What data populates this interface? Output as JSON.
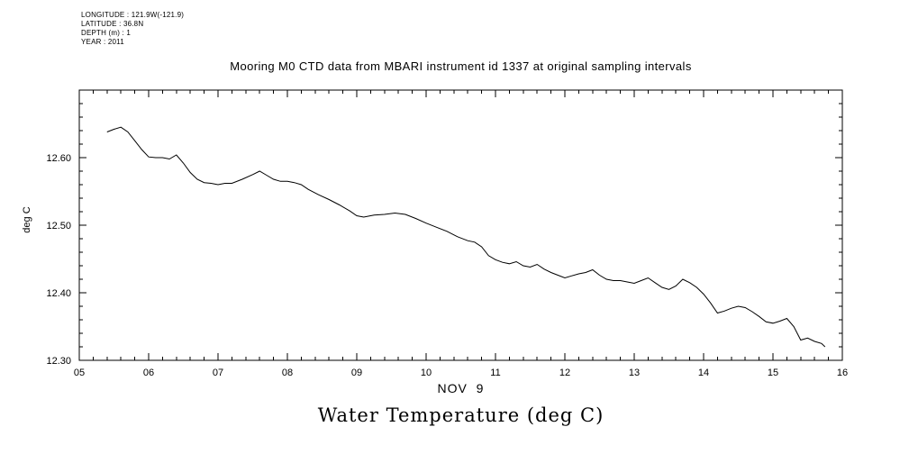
{
  "meta": {
    "lines": [
      "LONGITUDE : 121.9W(-121.9)",
      "LATITUDE : 36.8N",
      "DEPTH (m) : 1",
      "YEAR : 2011"
    ]
  },
  "title": "Mooring M0 CTD data from MBARI instrument id 1337 at original sampling intervals",
  "bottom_title": "Water Temperature (deg C)",
  "chart_data": {
    "type": "line",
    "title": "Mooring M0 CTD data from MBARI instrument id 1337 at original sampling intervals",
    "xlabel": "NOV  9",
    "ylabel": "deg C",
    "xlim": [
      5,
      16
    ],
    "ylim": [
      12.3,
      12.7
    ],
    "xticks": [
      5,
      6,
      7,
      8,
      9,
      10,
      11,
      12,
      13,
      14,
      15,
      16
    ],
    "xtick_labels": [
      "05",
      "06",
      "07",
      "08",
      "09",
      "10",
      "11",
      "12",
      "13",
      "14",
      "15",
      "16"
    ],
    "yticks": [
      12.3,
      12.4,
      12.5,
      12.6
    ],
    "ytick_labels": [
      "12.30",
      "12.40",
      "12.50",
      "12.60"
    ],
    "grid": false,
    "legend": "none",
    "line_color": "#000000",
    "series": [
      {
        "name": "water_temperature_degC",
        "x": [
          5.4,
          5.5,
          5.6,
          5.7,
          5.8,
          5.9,
          6.0,
          6.1,
          6.2,
          6.3,
          6.4,
          6.5,
          6.6,
          6.7,
          6.8,
          6.9,
          7.0,
          7.1,
          7.2,
          7.35,
          7.5,
          7.6,
          7.7,
          7.8,
          7.9,
          8.0,
          8.1,
          8.2,
          8.3,
          8.45,
          8.6,
          8.75,
          8.9,
          9.0,
          9.1,
          9.25,
          9.4,
          9.55,
          9.7,
          9.85,
          10.0,
          10.15,
          10.3,
          10.45,
          10.6,
          10.7,
          10.8,
          10.9,
          11.0,
          11.1,
          11.2,
          11.3,
          11.4,
          11.5,
          11.6,
          11.7,
          11.8,
          11.9,
          12.0,
          12.1,
          12.2,
          12.3,
          12.4,
          12.5,
          12.6,
          12.7,
          12.8,
          12.9,
          13.0,
          13.1,
          13.2,
          13.3,
          13.4,
          13.5,
          13.6,
          13.7,
          13.8,
          13.9,
          14.0,
          14.1,
          14.2,
          14.3,
          14.4,
          14.5,
          14.6,
          14.7,
          14.8,
          14.9,
          15.0,
          15.1,
          15.2,
          15.3,
          15.4,
          15.5,
          15.6,
          15.7,
          15.75
        ],
        "y": [
          12.638,
          12.642,
          12.645,
          12.638,
          12.625,
          12.612,
          12.601,
          12.6,
          12.6,
          12.598,
          12.604,
          12.592,
          12.578,
          12.568,
          12.563,
          12.562,
          12.56,
          12.562,
          12.562,
          12.568,
          12.575,
          12.58,
          12.574,
          12.568,
          12.565,
          12.565,
          12.563,
          12.56,
          12.553,
          12.545,
          12.538,
          12.53,
          12.521,
          12.514,
          12.512,
          12.515,
          12.516,
          12.518,
          12.516,
          12.51,
          12.503,
          12.497,
          12.491,
          12.483,
          12.477,
          12.475,
          12.468,
          12.455,
          12.449,
          12.445,
          12.443,
          12.446,
          12.44,
          12.438,
          12.442,
          12.435,
          12.43,
          12.426,
          12.422,
          12.425,
          12.428,
          12.43,
          12.434,
          12.426,
          12.42,
          12.418,
          12.418,
          12.416,
          12.414,
          12.418,
          12.422,
          12.415,
          12.408,
          12.405,
          12.41,
          12.42,
          12.415,
          12.408,
          12.398,
          12.385,
          12.37,
          12.373,
          12.377,
          12.38,
          12.378,
          12.372,
          12.365,
          12.357,
          12.355,
          12.358,
          12.362,
          12.35,
          12.33,
          12.333,
          12.328,
          12.325,
          12.32
        ]
      }
    ]
  }
}
